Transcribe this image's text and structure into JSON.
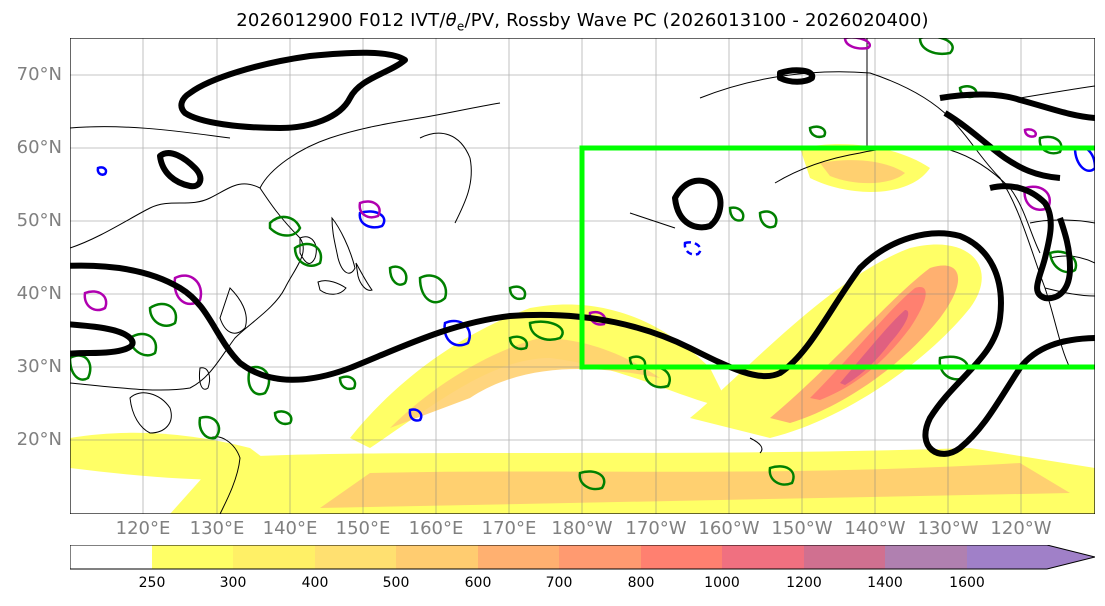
{
  "title": "2026012900 F012 IVT/θe/PV, Rossby Wave PC (2026013100 - 2026020400)",
  "title_parts": {
    "pre": "2026012900 F012 IVT/",
    "theta": "θ",
    "sub": "e",
    "post": "/PV, Rossby Wave PC (2026013100 - 2026020400)"
  },
  "map": {
    "projection": "cylindrical",
    "lon_range": "110°E to 110°W",
    "lat_range": "10°N to 75°N",
    "grid": true,
    "lat_labels": [
      "70°N",
      "60°N",
      "50°N",
      "40°N",
      "30°N",
      "20°N"
    ],
    "lon_labels": [
      "120°E",
      "130°E",
      "140°E",
      "150°E",
      "160°E",
      "170°E",
      "180°W",
      "170°W",
      "160°W",
      "150°W",
      "140°W",
      "130°W",
      "120°W"
    ],
    "highlight_box": {
      "color": "#00ff00",
      "lon_range": "180°W to 110°W",
      "lat_range": "30°N to 60°N"
    }
  },
  "colorbar": {
    "ticks": [
      "250",
      "300",
      "400",
      "500",
      "600",
      "700",
      "800",
      "1000",
      "1200",
      "1400",
      "1600"
    ],
    "colors": [
      "#ffffff",
      "#ffff66",
      "#fff066",
      "#ffe070",
      "#ffcc70",
      "#ffb070",
      "#ff9a70",
      "#ff8070",
      "#f07080",
      "#d07090",
      "#b080b0",
      "#a080c8"
    ],
    "extend": "max"
  },
  "colors": {
    "rossby": "#000000",
    "theta_e": "#008000",
    "pv_pos": "#0000ff",
    "pv_neg": "#b000b0",
    "coast": "#000000",
    "grid": "#808080",
    "box": "#00ff00"
  }
}
